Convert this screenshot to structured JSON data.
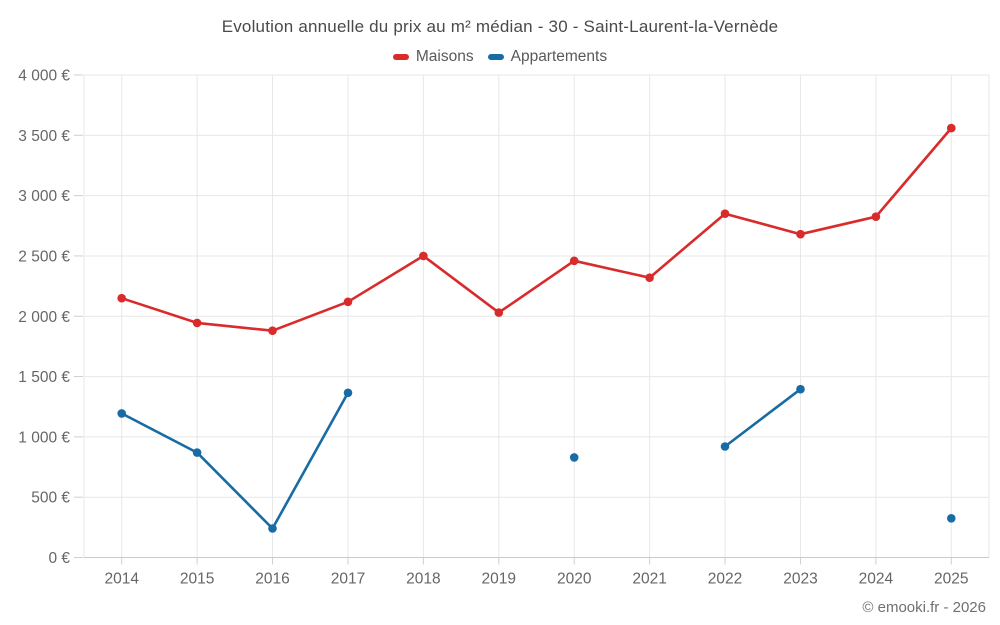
{
  "chart": {
    "title": "Evolution annuelle du prix au m² médian - 30 - Saint-Laurent-la-Vernède",
    "copyright": "© emooki.fr - 2026"
  },
  "chart_data": {
    "type": "line",
    "title": "Evolution annuelle du prix au m² médian - 30 - Saint-Laurent-la-Vernède",
    "xlabel": "",
    "ylabel": "",
    "grid": true,
    "legend_position": "top",
    "categories": [
      "2014",
      "2015",
      "2016",
      "2017",
      "2018",
      "2019",
      "2020",
      "2021",
      "2022",
      "2023",
      "2024",
      "2025"
    ],
    "series": [
      {
        "name": "Maisons",
        "color": "#d92b2b",
        "values": [
          2150,
          1945,
          1880,
          2120,
          2500,
          2030,
          2460,
          2320,
          2850,
          2680,
          2825,
          3560
        ]
      },
      {
        "name": "Appartements",
        "color": "#186ba4",
        "values": [
          1195,
          870,
          240,
          1365,
          null,
          null,
          830,
          null,
          920,
          1395,
          null,
          325
        ]
      }
    ],
    "ylim": [
      0,
      4000
    ],
    "y_ticks": [
      {
        "value": 0,
        "label": "0 €"
      },
      {
        "value": 500,
        "label": "500 €"
      },
      {
        "value": 1000,
        "label": "1 000 €"
      },
      {
        "value": 1500,
        "label": "1 500 €"
      },
      {
        "value": 2000,
        "label": "2 000 €"
      },
      {
        "value": 2500,
        "label": "2 500 €"
      },
      {
        "value": 3000,
        "label": "3 000 €"
      },
      {
        "value": 3500,
        "label": "3 500 €"
      },
      {
        "value": 4000,
        "label": "4 000 €"
      }
    ],
    "style": {
      "grid_color": "#e7e7e7",
      "axis_line_color": "#c9c9c9",
      "tick_color": "#cfcfcf",
      "label_color": "#666666"
    }
  }
}
